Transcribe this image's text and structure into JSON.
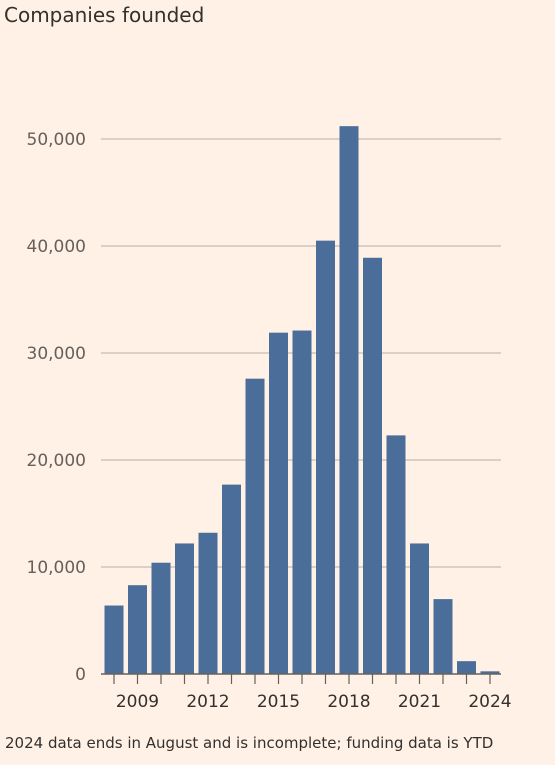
{
  "title": "Companies founded",
  "footnote": "2024 data ends in August and is incomplete; funding data is YTD",
  "chart_data": {
    "type": "bar",
    "title": "Companies founded",
    "categories": [
      "2008",
      "2009",
      "2010",
      "2011",
      "2012",
      "2013",
      "2014",
      "2015",
      "2016",
      "2017",
      "2018",
      "2019",
      "2020",
      "2021",
      "2022",
      "2023",
      "2024"
    ],
    "values": [
      6400,
      8300,
      10400,
      12200,
      13200,
      17700,
      27600,
      31900,
      32100,
      40500,
      51200,
      38900,
      22300,
      12200,
      7000,
      1200,
      250
    ],
    "x_tick_labels": [
      "2009",
      "2012",
      "2015",
      "2018",
      "2021",
      "2024"
    ],
    "y_ticks": [
      0,
      10000,
      20000,
      30000,
      40000,
      50000
    ],
    "y_tick_labels": [
      "0",
      "10,000",
      "20,000",
      "30,000",
      "40,000",
      "50,000"
    ],
    "ylim": [
      0,
      53000
    ],
    "grid": true,
    "bar_color": "#4a6e99",
    "grid_color": "#c7bdb4",
    "axis_color": "#66605c"
  }
}
